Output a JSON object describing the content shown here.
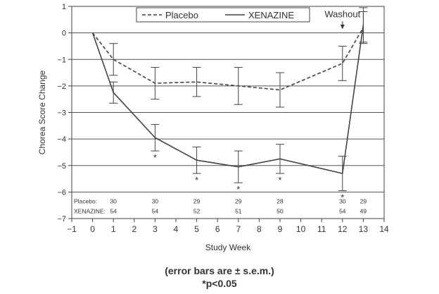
{
  "chart_data": {
    "type": "line",
    "xlabel": "Study Week",
    "ylabel": "Chorea Score Change",
    "xlim": [
      -1,
      14
    ],
    "ylim": [
      -7,
      1
    ],
    "xticks": [
      -1,
      0,
      1,
      2,
      3,
      4,
      5,
      6,
      7,
      8,
      9,
      10,
      11,
      12,
      13,
      14
    ],
    "yticks": [
      1,
      0,
      -1,
      -2,
      -3,
      -4,
      -5,
      -6,
      -7
    ],
    "grid": "horizontal",
    "legend_position": "top-center",
    "series": [
      {
        "name": "Placebo",
        "style": "dashed",
        "color": "#444444",
        "x": [
          0,
          1,
          3,
          5,
          7,
          9,
          12,
          13
        ],
        "y": [
          0,
          -1.0,
          -1.9,
          -1.85,
          -2.0,
          -2.15,
          -1.15,
          0.2
        ],
        "err": [
          0,
          0.6,
          0.6,
          0.55,
          0.7,
          0.65,
          0.65,
          0.6
        ]
      },
      {
        "name": "XENAZINE",
        "style": "solid",
        "color": "#444444",
        "x": [
          0,
          1,
          3,
          5,
          7,
          9,
          12,
          13
        ],
        "y": [
          0,
          -2.25,
          -3.95,
          -4.8,
          -5.05,
          -4.75,
          -5.3,
          0.3
        ],
        "err": [
          0,
          0.4,
          0.5,
          0.5,
          0.6,
          0.55,
          0.65,
          0.65
        ]
      }
    ],
    "significance": {
      "symbol": "*",
      "x": [
        3,
        5,
        7,
        9,
        12
      ]
    },
    "annotations": [
      {
        "text": "Washout",
        "x": 12,
        "y": 0.7
      }
    ],
    "n_table": {
      "x": [
        1,
        3,
        5,
        7,
        9,
        12,
        13
      ],
      "rows": [
        {
          "label": "Placebo:",
          "values": [
            "30",
            "30",
            "29",
            "29",
            "28",
            "30",
            "29"
          ]
        },
        {
          "label": "XENAZINE:",
          "values": [
            "54",
            "54",
            "52",
            "51",
            "50",
            "54",
            "49"
          ]
        }
      ]
    }
  },
  "notes": {
    "error_bars": "(error bars are ± s.e.m.)",
    "significance": "*p<0.05"
  }
}
